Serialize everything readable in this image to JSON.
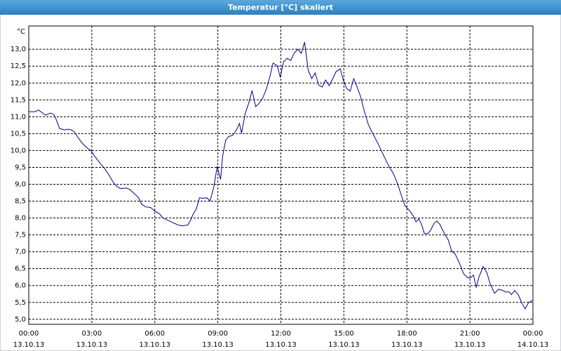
{
  "chart_data": {
    "type": "line",
    "title": "Temperatur [°C] skaliert",
    "y_label": "°C",
    "x": [
      0,
      0.3,
      0.47,
      0.7,
      0.8,
      1.03,
      1.2,
      1.3,
      1.47,
      1.7,
      1.87,
      2.03,
      2.17,
      2.37,
      2.57,
      2.83,
      2.97,
      3.13,
      3.37,
      3.63,
      3.83,
      4.03,
      4.2,
      4.37,
      4.63,
      4.8,
      5.03,
      5.23,
      5.37,
      5.57,
      5.8,
      5.97,
      6.23,
      6.37,
      6.63,
      6.9,
      7.13,
      7.3,
      7.57,
      7.7,
      7.83,
      7.97,
      8.13,
      8.3,
      8.47,
      8.63,
      8.8,
      8.97,
      9.13,
      9.23,
      9.37,
      9.5,
      9.7,
      9.87,
      10.03,
      10.13,
      10.3,
      10.47,
      10.63,
      10.8,
      10.97,
      11.13,
      11.3,
      11.47,
      11.63,
      11.83,
      11.97,
      12.13,
      12.3,
      12.47,
      12.63,
      12.8,
      12.97,
      13.13,
      13.3,
      13.47,
      13.63,
      13.8,
      13.97,
      14.13,
      14.3,
      14.47,
      14.63,
      14.83,
      14.97,
      15.13,
      15.3,
      15.47,
      15.63,
      15.8,
      15.97,
      16.17,
      16.37,
      16.63,
      16.9,
      17.13,
      17.37,
      17.57,
      17.73,
      17.9,
      18.13,
      18.3,
      18.43,
      18.57,
      18.7,
      18.83,
      19.0,
      19.13,
      19.3,
      19.43,
      19.57,
      19.77,
      19.97,
      20.13,
      20.3,
      20.5,
      20.7,
      20.9,
      21.03,
      21.17,
      21.3,
      21.43,
      21.63,
      21.8,
      21.97,
      22.17,
      22.37,
      22.57,
      22.7,
      22.87,
      22.97,
      23.13,
      23.3,
      23.47,
      23.63,
      23.8,
      23.97
    ],
    "series": [
      {
        "color": "#00008b",
        "values": [
          11.15,
          11.15,
          11.2,
          11.09,
          11.05,
          11.11,
          11.07,
          10.93,
          10.65,
          10.61,
          10.63,
          10.61,
          10.55,
          10.36,
          10.2,
          10.05,
          9.99,
          9.84,
          9.64,
          9.45,
          9.26,
          9.05,
          8.93,
          8.87,
          8.89,
          8.85,
          8.72,
          8.6,
          8.41,
          8.33,
          8.31,
          8.22,
          8.12,
          8.01,
          7.93,
          7.85,
          7.79,
          7.77,
          7.79,
          7.93,
          8.12,
          8.26,
          8.6,
          8.58,
          8.6,
          8.51,
          8.89,
          9.53,
          9.14,
          9.84,
          10.3,
          10.41,
          10.45,
          10.59,
          10.8,
          10.51,
          11.09,
          11.4,
          11.78,
          11.3,
          11.4,
          11.55,
          11.8,
          12.17,
          12.59,
          12.51,
          12.17,
          12.63,
          12.73,
          12.67,
          12.88,
          13.0,
          12.88,
          13.21,
          12.38,
          12.13,
          12.3,
          11.94,
          11.88,
          12.09,
          11.92,
          12.13,
          12.34,
          12.42,
          12.09,
          11.84,
          11.76,
          12.13,
          11.88,
          11.59,
          11.17,
          10.76,
          10.51,
          10.2,
          9.84,
          9.55,
          9.3,
          8.99,
          8.68,
          8.37,
          8.22,
          8.06,
          7.89,
          7.97,
          7.81,
          7.54,
          7.54,
          7.64,
          7.85,
          7.91,
          7.81,
          7.56,
          7.35,
          7.02,
          6.93,
          6.66,
          6.35,
          6.23,
          6.23,
          6.31,
          5.94,
          6.25,
          6.56,
          6.39,
          6.04,
          5.77,
          5.89,
          5.85,
          5.81,
          5.81,
          5.73,
          5.85,
          5.73,
          5.48,
          5.31,
          5.5,
          5.56
        ]
      }
    ],
    "xlim": [
      0,
      24
    ],
    "xticks": [
      {
        "value": 0,
        "label": "00:00"
      },
      {
        "value": 3,
        "label": "03:00"
      },
      {
        "value": 6,
        "label": "06:00"
      },
      {
        "value": 9,
        "label": "09:00"
      },
      {
        "value": 12,
        "label": "12:00"
      },
      {
        "value": 15,
        "label": "15:00"
      },
      {
        "value": 18,
        "label": "18:00"
      },
      {
        "value": 21,
        "label": "21:00"
      },
      {
        "value": 24,
        "label": "00:00"
      }
    ],
    "xtick_dates": [
      "13.10.13",
      "13.10.13",
      "13.10.13",
      "13.10.13",
      "13.10.13",
      "13.10.13",
      "13.10.13",
      "13.10.13",
      "14.10.13"
    ],
    "ylim": [
      4.85,
      13.69
    ],
    "yticks": [
      {
        "value": 5,
        "label": "5,0"
      },
      {
        "value": 5.5,
        "label": "5,5"
      },
      {
        "value": 6,
        "label": "6,0"
      },
      {
        "value": 6.5,
        "label": "6,5"
      },
      {
        "value": 7,
        "label": "7,0"
      },
      {
        "value": 7.5,
        "label": "7,5"
      },
      {
        "value": 8,
        "label": "8,0"
      },
      {
        "value": 8.5,
        "label": "8,5"
      },
      {
        "value": 9,
        "label": "9,0"
      },
      {
        "value": 9.5,
        "label": "9,5"
      },
      {
        "value": 10,
        "label": "10,0"
      },
      {
        "value": 10.5,
        "label": "10,5"
      },
      {
        "value": 11,
        "label": "11,0"
      },
      {
        "value": 11.5,
        "label": "11,5"
      },
      {
        "value": 12,
        "label": "12,0"
      },
      {
        "value": 12.5,
        "label": "12,5"
      },
      {
        "value": 13,
        "label": "13,0"
      }
    ],
    "grid": true
  }
}
